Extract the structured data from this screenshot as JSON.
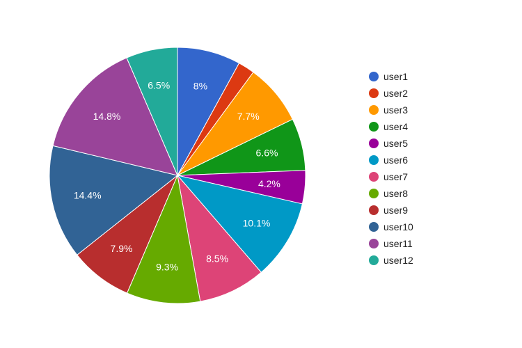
{
  "chart_data": {
    "type": "pie",
    "categories": [
      "user1",
      "user2",
      "user3",
      "user4",
      "user5",
      "user6",
      "user7",
      "user8",
      "user9",
      "user10",
      "user11",
      "user12"
    ],
    "values": [
      8,
      2.1,
      7.7,
      6.6,
      4.2,
      10.1,
      8.5,
      9.3,
      7.9,
      14.4,
      14.8,
      6.5
    ],
    "labels": [
      "8%",
      "",
      "7.7%",
      "6.6%",
      "4.2%",
      "10.1%",
      "8.5%",
      "9.3%",
      "7.9%",
      "14.4%",
      "14.8%",
      "6.5%"
    ],
    "colors": [
      "#3366cc",
      "#dc3912",
      "#ff9900",
      "#109618",
      "#990099",
      "#0099c6",
      "#dd4477",
      "#66aa00",
      "#b82e2e",
      "#316395",
      "#994499",
      "#22aa99"
    ],
    "legend_position": "right",
    "start_angle": "top, clockwise"
  }
}
